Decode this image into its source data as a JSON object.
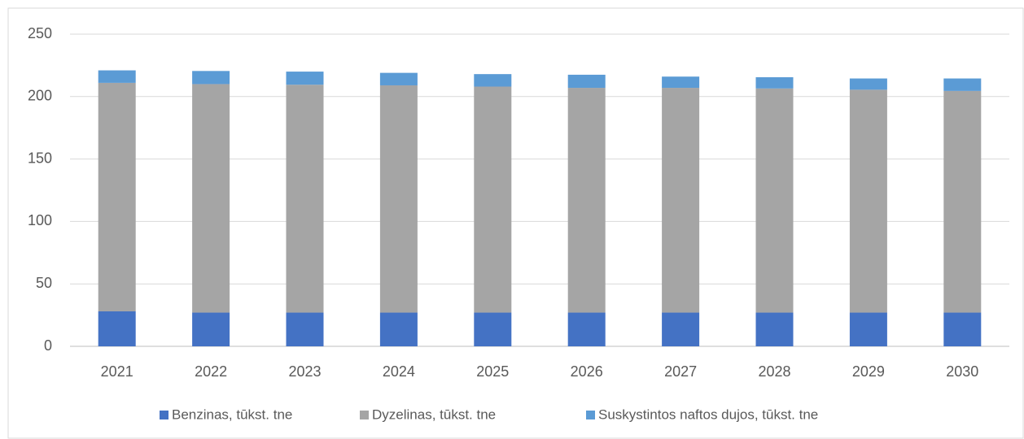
{
  "chart_data": {
    "type": "stacked_bar",
    "categories": [
      "2021",
      "2022",
      "2023",
      "2024",
      "2025",
      "2026",
      "2027",
      "2028",
      "2029",
      "2030"
    ],
    "series": [
      {
        "name": "Benzinas, tūkst. tne",
        "color": "#4472c4",
        "values": [
          28,
          27,
          27,
          27,
          27,
          27,
          27,
          27,
          27,
          27
        ]
      },
      {
        "name": "Dyzelinas, tūkst. tne",
        "color": "#a5a5a5",
        "values": [
          183,
          183,
          182.5,
          182,
          181,
          180,
          180,
          179.5,
          178.5,
          177.5
        ]
      },
      {
        "name": "Suskystintos naftos dujos, tūkst. tne",
        "color": "#5b9bd5",
        "values": [
          10,
          10.5,
          10.5,
          10,
          10,
          10.5,
          9,
          9,
          9,
          10
        ]
      }
    ],
    "ylim": [
      0,
      250
    ],
    "yticks": [
      0,
      50,
      100,
      150,
      200,
      250
    ],
    "grid": true,
    "legend": "bottom"
  }
}
